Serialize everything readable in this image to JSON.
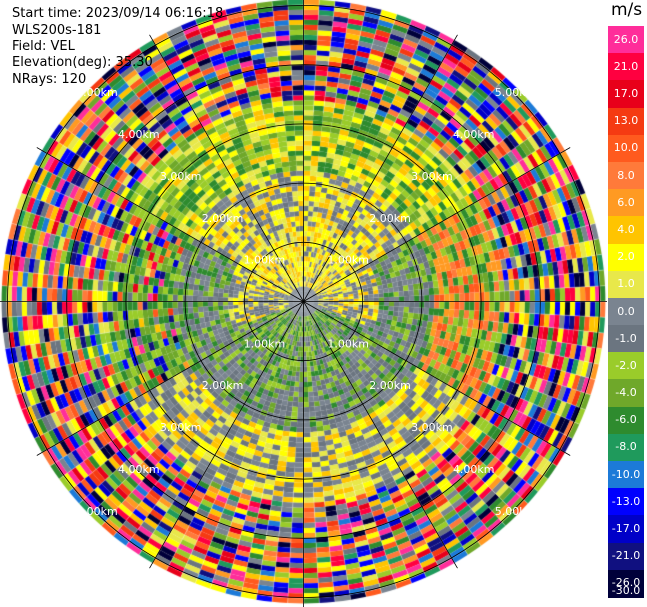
{
  "header": {
    "start_time": "Start time: 2023/09/14 06:16:18",
    "instrument": "WLS200s-181",
    "field": "Field: VEL",
    "elevation": "Elevation(deg): 35.30",
    "nrays": "NRays: 120"
  },
  "colorbar": {
    "units": "m/s",
    "ticks": [
      "26.0",
      "21.0",
      "17.0",
      "13.0",
      "10.0",
      "8.0",
      "6.0",
      "4.0",
      "2.0",
      "1.0",
      "0.0",
      "-1.0",
      "-2.0",
      "-4.0",
      "-6.0",
      "-8.0",
      "-10.0",
      "-13.0",
      "-17.0",
      "-21.0",
      "-26.0",
      "-30.0"
    ],
    "colors": [
      "#ff2d9a",
      "#ff0040",
      "#e8001a",
      "#f53a12",
      "#ff5a1e",
      "#ff7a3a",
      "#ff9a22",
      "#ffc400",
      "#ffff00",
      "#e8e84a",
      "#7a8490",
      "#6b7580",
      "#9acc2a",
      "#6fa82a",
      "#2e8b2e",
      "#1f9a5c",
      "#1c7ad8",
      "#0000ff",
      "#0000c8",
      "#101080",
      "#00003a"
    ]
  },
  "chart_data": {
    "type": "ppi",
    "field": "VEL",
    "units": "m/s",
    "nrays": 120,
    "elevation_deg": 35.3,
    "range_rings_km": [
      1.0,
      2.0,
      3.0,
      4.0,
      5.0
    ],
    "ring_labels": [
      "1.00km",
      "2.00km",
      "3.00km",
      "4.00km",
      "5.00km"
    ],
    "max_range_km": 5.1
  }
}
